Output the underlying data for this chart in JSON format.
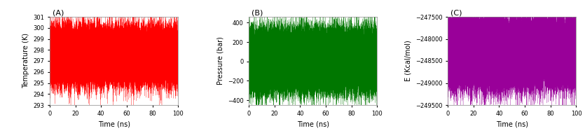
{
  "title_A": "(A)",
  "title_B": "(B)",
  "title_C": "(C)",
  "xlabel": "Time (ns)",
  "ylabel_A": "Temperature (K)",
  "ylabel_B": "Pressure (bar)",
  "ylabel_C": "E (Kcal/mol)",
  "xlim": [
    0,
    100
  ],
  "ylim_A": [
    293,
    301
  ],
  "ylim_B": [
    -450,
    460
  ],
  "ylim_C": [
    -249500,
    -247500
  ],
  "yticks_A": [
    293,
    294,
    295,
    296,
    297,
    298,
    299,
    300,
    301
  ],
  "yticks_B": [
    -400,
    -200,
    0,
    200,
    400
  ],
  "yticks_C": [
    -249500,
    -249000,
    -248500,
    -248000,
    -247500
  ],
  "xticks": [
    0,
    20,
    40,
    60,
    80,
    100
  ],
  "color_A": "#ff0000",
  "color_B": "#007700",
  "color_C": "#990099",
  "mean_A": 297.5,
  "std_A": 1.2,
  "mean_B": 10.0,
  "std_B": 150.0,
  "mean_C": -248300.0,
  "std_C": 380.0,
  "n_points": 50000,
  "seed": 42,
  "fig_width": 8.35,
  "fig_height": 2.0,
  "dpi": 100
}
